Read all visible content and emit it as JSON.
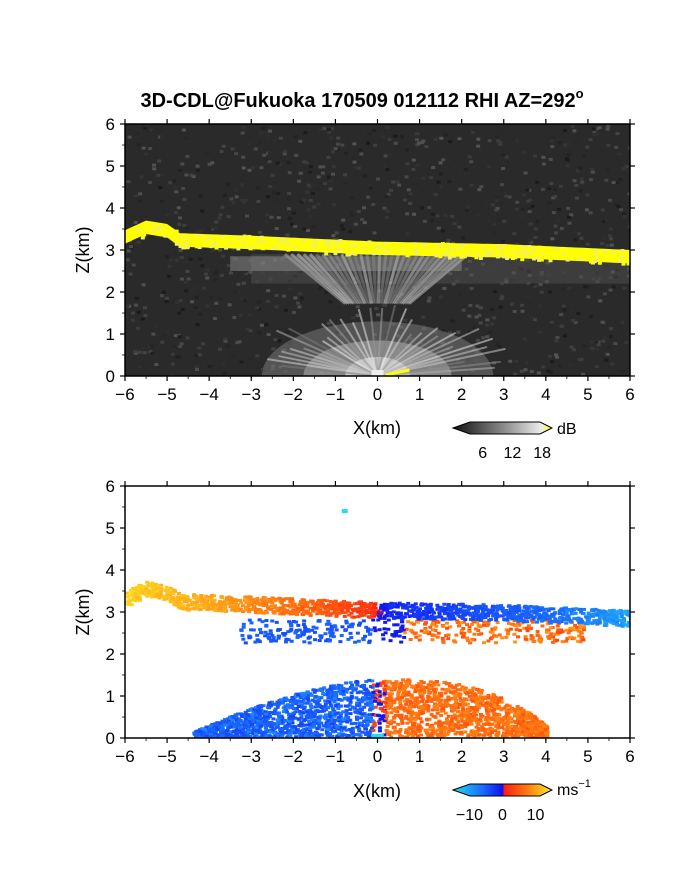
{
  "figure": {
    "title_main": "3D-CDL@Fukuoka 170509 012112 RHI AZ=292",
    "title_degree": "o"
  },
  "chart_data": [
    {
      "type": "heatmap",
      "name": "snr",
      "quantity": "SNR",
      "xlabel": "X(km)",
      "ylabel": "Z(km)",
      "xlim": [
        -6,
        6
      ],
      "ylim": [
        0,
        6
      ],
      "xticks": [
        -6,
        -5,
        -4,
        -3,
        -2,
        -1,
        0,
        1,
        2,
        3,
        4,
        5,
        6
      ],
      "yticks": [
        0,
        1,
        2,
        3,
        4,
        5,
        6
      ],
      "xtick_labels": [
        "−6",
        "−5",
        "−4",
        "−3",
        "−2",
        "−1",
        "0",
        "1",
        "2",
        "3",
        "4",
        "5",
        "6"
      ],
      "ytick_labels": [
        "0",
        "1",
        "2",
        "3",
        "4",
        "5",
        "6"
      ],
      "colormap": "gray-to-yellow",
      "colors": {
        "low": "#111111",
        "mid": "#bbbbbb",
        "high": "#ffff00"
      },
      "colorbar": {
        "unit": "dB",
        "ticks": [
          6,
          12,
          18
        ],
        "tick_labels": [
          "6",
          "12",
          "18"
        ],
        "range": [
          0,
          20
        ]
      },
      "features": {
        "cloud_layer_top_km": [
          {
            "x": -6.0,
            "z": 3.45
          },
          {
            "x": -5.5,
            "z": 3.68
          },
          {
            "x": -5.0,
            "z": 3.6
          },
          {
            "x": -4.7,
            "z": 3.38
          },
          {
            "x": -3.0,
            "z": 3.32
          },
          {
            "x": 0.0,
            "z": 3.18
          },
          {
            "x": 3.0,
            "z": 3.12
          },
          {
            "x": 6.0,
            "z": 2.98
          }
        ],
        "near_field_fan_km": {
          "x0": 0.0,
          "radius": 2.2,
          "top": 1.3
        },
        "virga_layer_km": [
          2.2,
          2.9
        ]
      }
    },
    {
      "type": "heatmap",
      "name": "doppler-velocity",
      "quantity": "Doppler velocity",
      "xlabel": "X(km)",
      "ylabel": "Z(km)",
      "xlim": [
        -6,
        6
      ],
      "ylim": [
        0,
        6
      ],
      "xticks": [
        -6,
        -5,
        -4,
        -3,
        -2,
        -1,
        0,
        1,
        2,
        3,
        4,
        5,
        6
      ],
      "yticks": [
        0,
        1,
        2,
        3,
        4,
        5,
        6
      ],
      "xtick_labels": [
        "−6",
        "−5",
        "−4",
        "−3",
        "−2",
        "−1",
        "0",
        "1",
        "2",
        "3",
        "4",
        "5",
        "6"
      ],
      "ytick_labels": [
        "0",
        "1",
        "2",
        "3",
        "4",
        "5",
        "6"
      ],
      "colormap": "cyan-blue-red-yellow",
      "colors": {
        "neg_max": "#22ddee",
        "neg": "#1a6aff",
        "zero": "#1010ee",
        "pos": "#ff3010",
        "pos_max": "#ffee22"
      },
      "colorbar": {
        "unit": "ms",
        "unit_exp": "−1",
        "ticks": [
          -10,
          0,
          10
        ],
        "tick_labels": [
          "−10",
          "0",
          "10"
        ],
        "range": [
          -15,
          15
        ]
      },
      "features": {
        "cloud_layer_velocity_ms": [
          {
            "x": -6.0,
            "v": 13
          },
          {
            "x": -4.0,
            "v": 10
          },
          {
            "x": -2.0,
            "v": 6
          },
          {
            "x": -0.2,
            "v": 2
          },
          {
            "x": 0.2,
            "v": -3
          },
          {
            "x": 2.0,
            "v": -6
          },
          {
            "x": 4.0,
            "v": -9
          },
          {
            "x": 6.0,
            "v": -12
          }
        ],
        "boundary_layer_top_km": 1.3,
        "boundary_layer_left_ms": -9,
        "boundary_layer_right_ms": 6
      }
    }
  ]
}
